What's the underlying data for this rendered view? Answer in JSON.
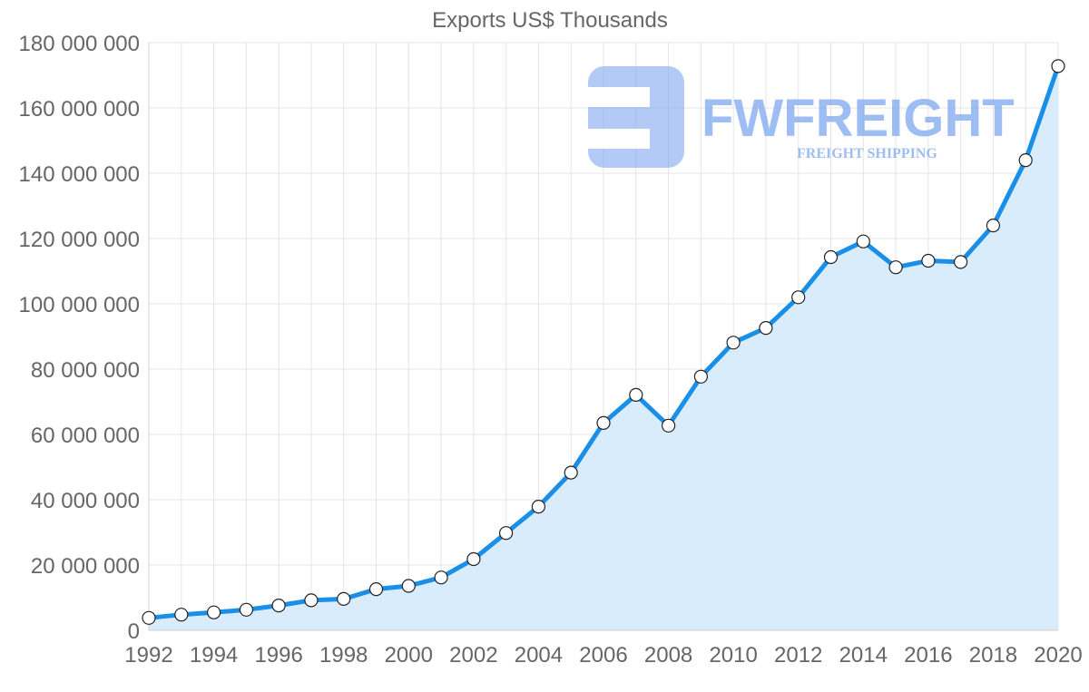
{
  "chart_data": {
    "type": "area",
    "title": "Exports US$ Thousands",
    "xlabel": "",
    "ylabel": "",
    "x": [
      1992,
      1993,
      1994,
      1995,
      1996,
      1997,
      1998,
      1999,
      2000,
      2001,
      2002,
      2003,
      2004,
      2005,
      2006,
      2007,
      2008,
      2009,
      2010,
      2011,
      2012,
      2013,
      2014,
      2015,
      2016,
      2017,
      2018,
      2019,
      2020
    ],
    "series": [
      {
        "name": "Exports",
        "values": [
          3800000,
          4800000,
          5500000,
          6300000,
          7600000,
          9200000,
          9600000,
          12600000,
          13600000,
          16200000,
          21800000,
          29800000,
          37900000,
          48300000,
          63500000,
          72100000,
          62700000,
          77700000,
          88100000,
          92600000,
          102000000,
          114300000,
          119100000,
          111200000,
          113200000,
          112800000,
          124000000,
          144000000,
          172800000
        ],
        "color": "#1a8fe8",
        "fill": "#d9ecfc"
      }
    ],
    "ylim": [
      0,
      180000000
    ],
    "yticks": [
      0,
      20000000,
      40000000,
      60000000,
      80000000,
      100000000,
      120000000,
      140000000,
      160000000,
      180000000
    ],
    "ytick_labels": [
      "0",
      "20 000 000",
      "40 000 000",
      "60 000 000",
      "80 000 000",
      "100 000 000",
      "120 000 000",
      "140 000 000",
      "160 000 000",
      "180 000 000"
    ],
    "xtick_labels": [
      "1992",
      "1994",
      "1996",
      "1998",
      "2000",
      "2002",
      "2004",
      "2006",
      "2008",
      "2010",
      "2012",
      "2014",
      "2016",
      "2018",
      "2020"
    ],
    "grid": true,
    "legend": "none"
  },
  "watermark": {
    "name": "FWFREIGHT",
    "tagline": "FREIGHT SHIPPING"
  }
}
